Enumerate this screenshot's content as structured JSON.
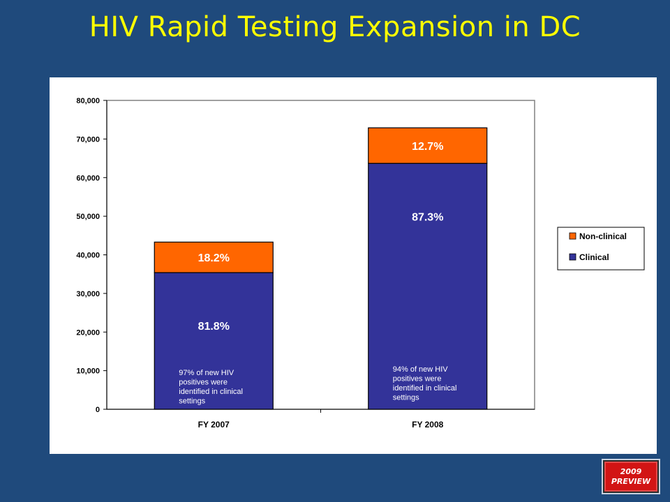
{
  "slide": {
    "title": "HIV Rapid Testing Expansion in DC",
    "badge": {
      "line1": "2009",
      "line2": "PREVIEW"
    }
  },
  "colors": {
    "background": "#1f4a7c",
    "title": "#ffff00",
    "clinical": "#333399",
    "non_clinical": "#ff6600"
  },
  "chart_data": {
    "type": "bar",
    "stacked": true,
    "title": "",
    "xlabel": "",
    "ylabel": "",
    "categories": [
      "FY 2007",
      "FY 2008"
    ],
    "ylim": [
      0,
      80000
    ],
    "yticks": [
      {
        "value": 0,
        "label": "0"
      },
      {
        "value": 10000,
        "label": "10,000"
      },
      {
        "value": 20000,
        "label": "20,000"
      },
      {
        "value": 30000,
        "label": "30,000"
      },
      {
        "value": 40000,
        "label": "40,000"
      },
      {
        "value": 50000,
        "label": "50,000"
      },
      {
        "value": 60000,
        "label": "60,000"
      },
      {
        "value": 70000,
        "label": "70,000"
      },
      {
        "value": 80000,
        "label": "80,000"
      }
    ],
    "series": [
      {
        "name": "Clinical",
        "color": "#333399",
        "values": [
          35400,
          63700
        ],
        "labels": [
          "81.8%",
          "87.3%"
        ],
        "label_color": "#ffffff"
      },
      {
        "name": "Non-clinical",
        "color": "#ff6600",
        "values": [
          7900,
          9200
        ],
        "labels": [
          "18.2%",
          "12.7%"
        ],
        "label_color": "#ffffff"
      }
    ],
    "legend": {
      "position": "right",
      "order": [
        "Non-clinical",
        "Clinical"
      ]
    },
    "grid": false,
    "annotations": [
      "97% of new HIV positives were identified in clinical settings",
      "94% of new HIV positives were identified in clinical settings"
    ]
  }
}
